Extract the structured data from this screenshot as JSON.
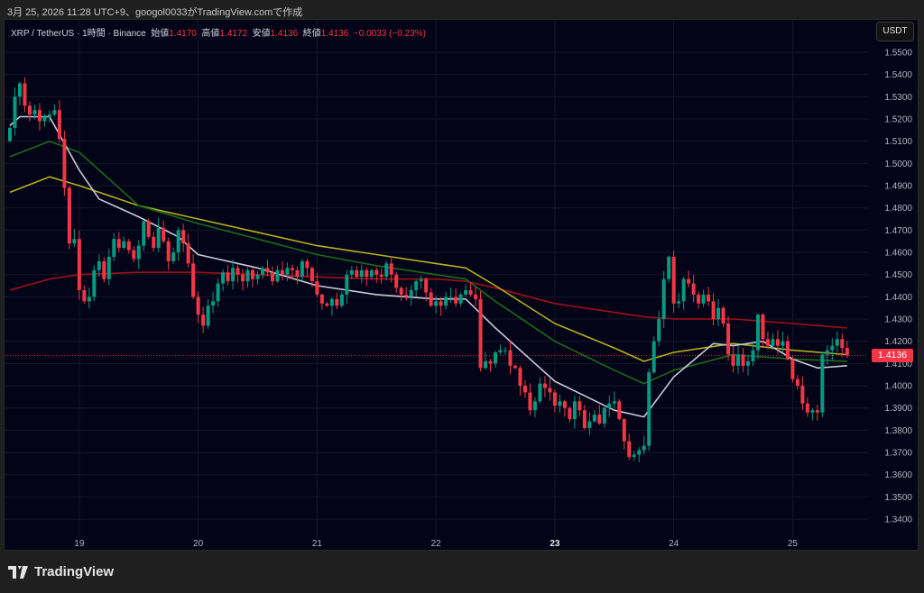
{
  "caption": "3月 25, 2026 11:28 UTC+9、googol0033がTradingView.comで作成",
  "legend": {
    "symbol": "XRP / TetherUS · 1時間 · Binance",
    "open_label": "始値",
    "open": "1.4170",
    "high_label": "高値",
    "high": "1.4172",
    "low_label": "安値",
    "low": "1.4136",
    "close_label": "終値",
    "close": "1.4136",
    "change": "−0.0033 (−0.23%)"
  },
  "currency_button": "USDT",
  "last_price": "1.4136",
  "brand": "TradingView",
  "colors": {
    "up": "#089981",
    "down": "#f23645",
    "background": "#030417",
    "ma_white": "#c9c9d6",
    "ma_green": "#1b6b1b",
    "ma_yellow": "#b5b01c",
    "ma_red": "#a30f18"
  },
  "chart_data": {
    "type": "candlestick",
    "interval": "1h",
    "start": "2026-03-18 10:00",
    "first_open": 1.51,
    "close": [
      1.516,
      1.53,
      1.536,
      1.526,
      1.522,
      1.524,
      1.519,
      1.521,
      1.522,
      1.524,
      1.511,
      1.489,
      1.464,
      1.466,
      1.443,
      1.438,
      1.44,
      1.452,
      1.456,
      1.448,
      1.458,
      1.466,
      1.462,
      1.465,
      1.461,
      1.457,
      1.463,
      1.474,
      1.467,
      1.462,
      1.471,
      1.465,
      1.456,
      1.46,
      1.47,
      1.464,
      1.455,
      1.44,
      1.432,
      1.427,
      1.436,
      1.438,
      1.446,
      1.451,
      1.447,
      1.453,
      1.45,
      1.447,
      1.452,
      1.448,
      1.45,
      1.453,
      1.451,
      1.447,
      1.452,
      1.45,
      1.453,
      1.452,
      1.449,
      1.456,
      1.453,
      1.447,
      1.441,
      1.437,
      1.436,
      1.439,
      1.436,
      1.441,
      1.45,
      1.452,
      1.449,
      1.452,
      1.449,
      1.452,
      1.45,
      1.449,
      1.455,
      1.45,
      1.444,
      1.441,
      1.44,
      1.443,
      1.447,
      1.448,
      1.442,
      1.436,
      1.438,
      1.436,
      1.44,
      1.44,
      1.437,
      1.441,
      1.443,
      1.441,
      1.439,
      1.408,
      1.411,
      1.41,
      1.415,
      1.416,
      1.416,
      1.409,
      1.408,
      1.4,
      1.397,
      1.389,
      1.393,
      1.401,
      1.399,
      1.397,
      1.391,
      1.393,
      1.39,
      1.385,
      1.393,
      1.389,
      1.381,
      1.384,
      1.387,
      1.383,
      1.39,
      1.392,
      1.393,
      1.385,
      1.375,
      1.368,
      1.369,
      1.371,
      1.373,
      1.406,
      1.42,
      1.43,
      1.448,
      1.458,
      1.437,
      1.438,
      1.448,
      1.446,
      1.441,
      1.437,
      1.441,
      1.438,
      1.43,
      1.435,
      1.428,
      1.414,
      1.409,
      1.414,
      1.409,
      1.411,
      1.416,
      1.432,
      1.421,
      1.418,
      1.421,
      1.418,
      1.42,
      1.412,
      1.403,
      1.4,
      1.392,
      1.388,
      1.389,
      1.388,
      1.414,
      1.416,
      1.418,
      1.421,
      1.417,
      1.4136
    ],
    "moving_averages": [
      {
        "color": "#c9c9d6",
        "times": [
          "2026-03-18 10:00",
          "2026-03-18 12:00",
          "2026-03-18 18:00",
          "2026-03-18 20:00",
          "2026-03-19 00:00",
          "2026-03-19 04:00",
          "2026-03-19 12:00",
          "2026-03-19 20:00",
          "2026-03-20 00:00",
          "2026-03-20 12:00",
          "2026-03-21 00:00",
          "2026-03-21 12:00",
          "2026-03-22 00:00",
          "2026-03-22 06:00",
          "2026-03-22 12:00",
          "2026-03-23 00:00",
          "2026-03-23 12:00",
          "2026-03-23 18:00",
          "2026-03-24 00:00",
          "2026-03-24 08:00",
          "2026-03-24 12:00",
          "2026-03-24 18:00",
          "2026-03-25 00:00",
          "2026-03-25 05:00",
          "2026-03-25 11:00"
        ],
        "values": [
          1.517,
          1.521,
          1.521,
          1.513,
          1.497,
          1.484,
          1.476,
          1.467,
          1.459,
          1.453,
          1.445,
          1.441,
          1.439,
          1.439,
          1.426,
          1.402,
          1.389,
          1.386,
          1.404,
          1.419,
          1.418,
          1.42,
          1.412,
          1.408,
          1.409
        ]
      },
      {
        "color": "#1b6b1b",
        "times": [
          "2026-03-18 10:00",
          "2026-03-18 18:00",
          "2026-03-19 00:00",
          "2026-03-19 12:00",
          "2026-03-20 00:00",
          "2026-03-20 12:00",
          "2026-03-21 00:00",
          "2026-03-21 12:00",
          "2026-03-22 00:00",
          "2026-03-22 06:00",
          "2026-03-22 12:00",
          "2026-03-23 00:00",
          "2026-03-23 12:00",
          "2026-03-23 18:00",
          "2026-03-24 00:00",
          "2026-03-24 12:00",
          "2026-03-25 00:00",
          "2026-03-25 11:00"
        ],
        "values": [
          1.503,
          1.51,
          1.505,
          1.481,
          1.473,
          1.466,
          1.459,
          1.454,
          1.45,
          1.448,
          1.438,
          1.42,
          1.407,
          1.401,
          1.407,
          1.414,
          1.412,
          1.411
        ]
      },
      {
        "color": "#b5b01c",
        "times": [
          "2026-03-18 10:00",
          "2026-03-18 18:00",
          "2026-03-19 00:00",
          "2026-03-19 12:00",
          "2026-03-20 00:00",
          "2026-03-20 12:00",
          "2026-03-21 00:00",
          "2026-03-21 12:00",
          "2026-03-22 00:00",
          "2026-03-22 06:00",
          "2026-03-22 12:00",
          "2026-03-23 00:00",
          "2026-03-23 12:00",
          "2026-03-23 18:00",
          "2026-03-24 00:00",
          "2026-03-24 12:00",
          "2026-03-25 00:00",
          "2026-03-25 11:00"
        ],
        "values": [
          1.487,
          1.494,
          1.49,
          1.481,
          1.475,
          1.469,
          1.463,
          1.459,
          1.455,
          1.453,
          1.445,
          1.428,
          1.417,
          1.411,
          1.415,
          1.419,
          1.416,
          1.414
        ]
      },
      {
        "color": "#a30f18",
        "times": [
          "2026-03-18 10:00",
          "2026-03-18 18:00",
          "2026-03-19 00:00",
          "2026-03-19 12:00",
          "2026-03-20 00:00",
          "2026-03-20 12:00",
          "2026-03-21 00:00",
          "2026-03-21 12:00",
          "2026-03-22 00:00",
          "2026-03-22 06:00",
          "2026-03-22 12:00",
          "2026-03-23 00:00",
          "2026-03-23 12:00",
          "2026-03-23 18:00",
          "2026-03-24 00:00",
          "2026-03-24 12:00",
          "2026-03-25 00:00",
          "2026-03-25 11:00"
        ],
        "values": [
          1.443,
          1.448,
          1.45,
          1.451,
          1.451,
          1.45,
          1.449,
          1.448,
          1.448,
          1.447,
          1.444,
          1.437,
          1.433,
          1.431,
          1.43,
          1.43,
          1.428,
          1.426
        ]
      }
    ],
    "x_ticks": [
      {
        "label": "19",
        "time": "2026-03-19 00:00"
      },
      {
        "label": "20",
        "time": "2026-03-20 00:00"
      },
      {
        "label": "21",
        "time": "2026-03-21 00:00"
      },
      {
        "label": "22",
        "time": "2026-03-22 00:00"
      },
      {
        "label": "23",
        "time": "2026-03-23 00:00",
        "bold": true
      },
      {
        "label": "24",
        "time": "2026-03-24 00:00"
      },
      {
        "label": "25",
        "time": "2026-03-25 00:00"
      }
    ],
    "y_ticks": [
      "1.5500",
      "1.5400",
      "1.5300",
      "1.5200",
      "1.5100",
      "1.5000",
      "1.4900",
      "1.4800",
      "1.4700",
      "1.4600",
      "1.4500",
      "1.4400",
      "1.4300",
      "1.4200",
      "1.4100",
      "1.4000",
      "1.3900",
      "1.3800",
      "1.3700",
      "1.3600",
      "1.3500",
      "1.3400"
    ],
    "ylim": [
      1.3335,
      1.5635
    ],
    "grid": true
  }
}
